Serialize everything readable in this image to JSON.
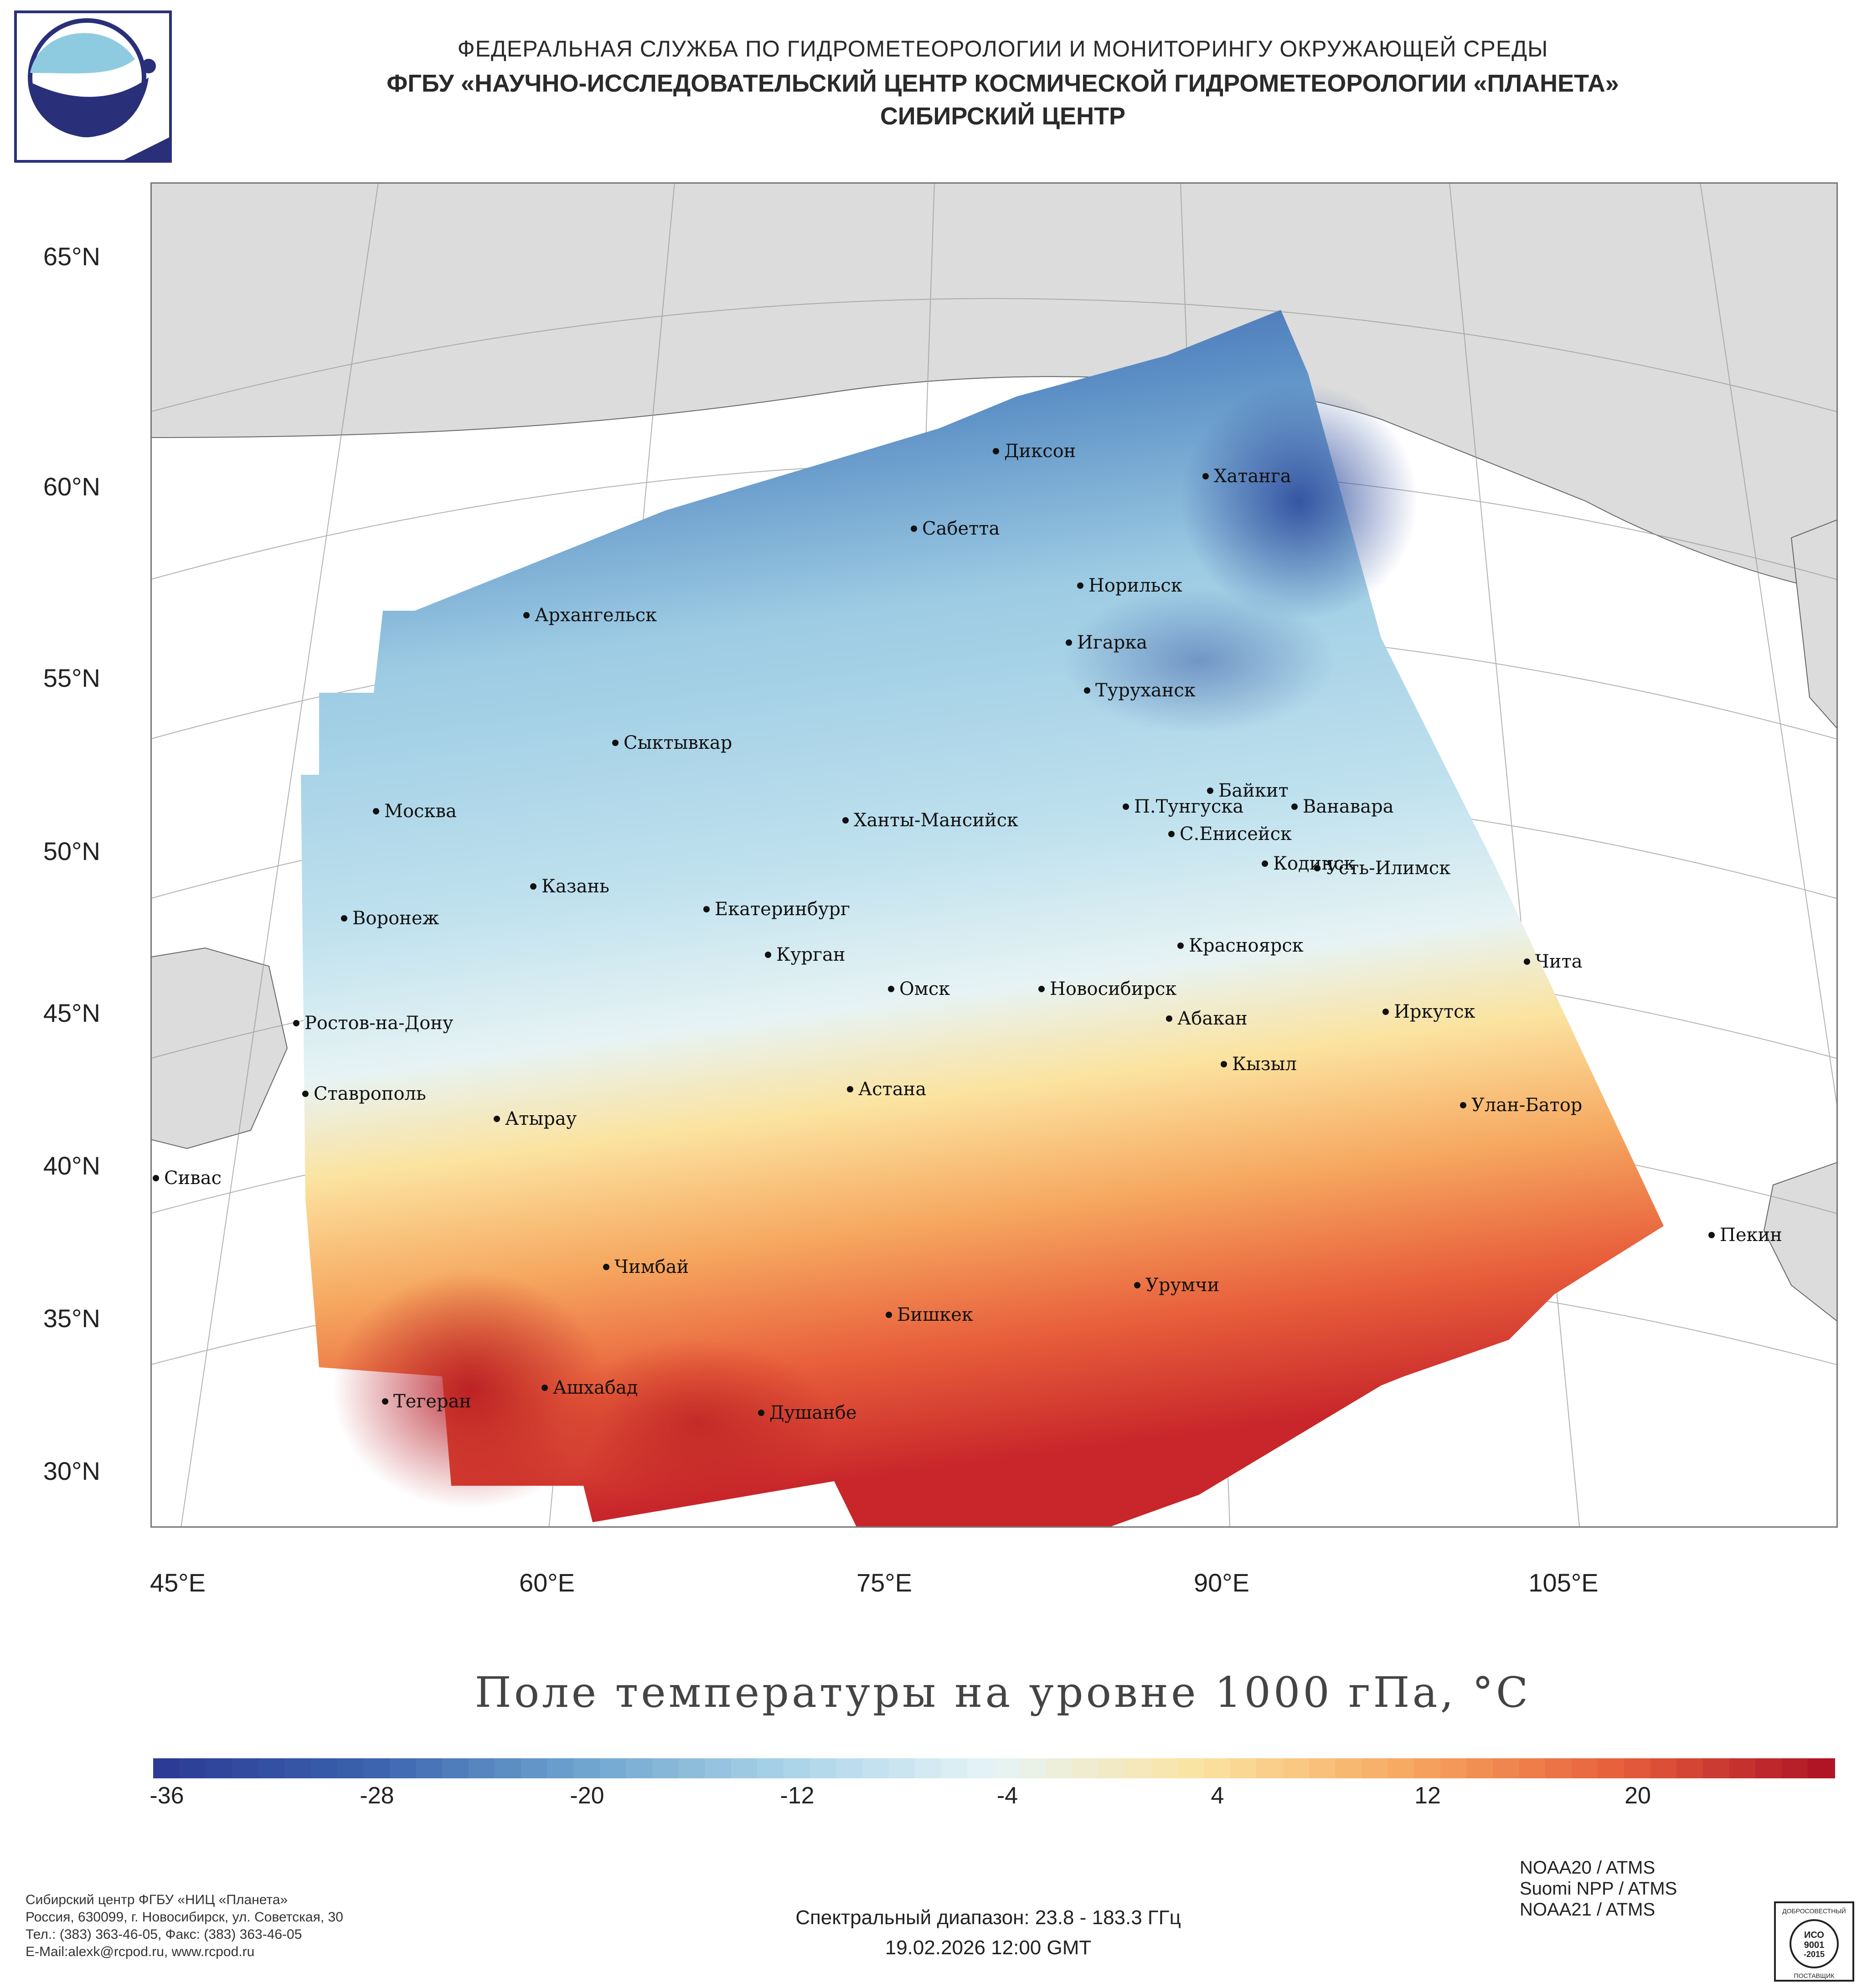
{
  "header": {
    "line1": "ФЕДЕРАЛЬНАЯ СЛУЖБА ПО ГИДРОМЕТЕОРОЛОГИИ И МОНИТОРИНГУ ОКРУЖАЮЩЕЙ СРЕДЫ",
    "line2": "ФГБУ «НАУЧНО-ИССЛЕДОВАТЕЛЬСКИЙ ЦЕНТР КОСМИЧЕСКОЙ ГИДРОМЕТЕОРОЛОГИИ «ПЛАНЕТА»",
    "line3": "СИБИРСКИЙ ЦЕНТР"
  },
  "map": {
    "lat_labels": [
      "65°N",
      "60°N",
      "55°N",
      "50°N",
      "45°N",
      "40°N",
      "35°N",
      "30°N"
    ],
    "lon_labels": [
      "45°E",
      "60°E",
      "75°E",
      "90°E",
      "105°E"
    ],
    "cities": [
      {
        "name": "Диксон"
      },
      {
        "name": "Хатанга"
      },
      {
        "name": "Сабетта"
      },
      {
        "name": "Норильск"
      },
      {
        "name": "Архангельск"
      },
      {
        "name": "Игарка"
      },
      {
        "name": "Туруханск"
      },
      {
        "name": "Сыктывкар"
      },
      {
        "name": "Байкит"
      },
      {
        "name": "Москва"
      },
      {
        "name": "Ханты-Мансийск"
      },
      {
        "name": "П.Тунгуска"
      },
      {
        "name": "Ванавара"
      },
      {
        "name": "С.Енисейск"
      },
      {
        "name": "Кодинск"
      },
      {
        "name": "Усть-Илимск"
      },
      {
        "name": "Казань"
      },
      {
        "name": "Екатеринбург"
      },
      {
        "name": "Воронеж"
      },
      {
        "name": "Красноярск"
      },
      {
        "name": "Курган"
      },
      {
        "name": "Чита"
      },
      {
        "name": "Омск"
      },
      {
        "name": "Новосибирск"
      },
      {
        "name": "Иркутск"
      },
      {
        "name": "Ростов-на-Дону"
      },
      {
        "name": "Абакан"
      },
      {
        "name": "Кызыл"
      },
      {
        "name": "Ставрополь"
      },
      {
        "name": "Астана"
      },
      {
        "name": "Улан-Батор"
      },
      {
        "name": "Атырау"
      },
      {
        "name": "Сивас"
      },
      {
        "name": "Пекин"
      },
      {
        "name": "Чимбай"
      },
      {
        "name": "Урумчи"
      },
      {
        "name": "Бишкек"
      },
      {
        "name": "Ашхабад"
      },
      {
        "name": "Тегеран"
      },
      {
        "name": "Душанбе"
      }
    ]
  },
  "chart_title": "Поле температуры на уровне 1000 гПа, °C",
  "colorbar": {
    "ticks": [
      "-36",
      "-28",
      "-20",
      "-12",
      "-4",
      "4",
      "12",
      "20"
    ],
    "range": [
      -38,
      26
    ],
    "colors": [
      "#2c3c96",
      "#3b63ae",
      "#6ea3cf",
      "#a9d3e8",
      "#e6f4f7",
      "#fbe3a0",
      "#f6a860",
      "#e8603c",
      "#b01526"
    ]
  },
  "satellites": [
    "NOAA20 / ATMS",
    "Suomi NPP / ATMS",
    "NOAA21 / ATMS"
  ],
  "footer": {
    "org": "Сибирский центр ФГБУ «НИЦ «Планета»",
    "address": "Россия, 630099, г. Новосибирск, ул. Советская, 30",
    "phone": "Тел.: (383) 363-46-05, Факс: (383) 363-46-05",
    "email": "E-Mail:alexk@rcpod.ru, www.rcpod.ru",
    "spectral": "Спектральный диапазон: 23.8 - 183.3 ГГц",
    "datetime": "19.02.2026 12:00 GMT"
  },
  "certificate": {
    "top": "ДОБРОСОВЕСТНЫЙ",
    "mid1": "ИСО",
    "mid2": "9001",
    "mid3": "-2015",
    "bottom": "ПОСТАВЩИК"
  }
}
